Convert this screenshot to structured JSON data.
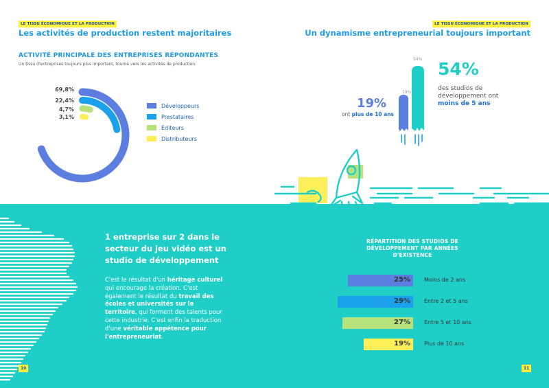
{
  "left": {
    "tag": "LE TISSU ÉCONOMIQUE ET LA PRODUCTION",
    "headline": "Les activités de production restent majoritaires",
    "section_title": "ACTIVITÉ PRINCIPALE DES ENTREPRISES RÉPONDANTES",
    "section_subtitle": "Un tissu d'entreprises toujours plus important, tourné vers les activités de production.",
    "heading": "1 entreprise sur 2 dans le secteur du jeu vidéo est un studio de développement",
    "body": {
      "p1": "C'est le résultat d'un ",
      "b1": "héritage culturel",
      "p2": " qui encourage la création. C'est également le résultat du ",
      "b2": "travail des écoles et universités sur le territoire",
      "p3": ", qui forment des talents pour cette industrie. C'est enfin la traduction d'une ",
      "b3": "véritable appétence pour l'entrepreneuriat",
      "p4": "."
    },
    "page_number": "10"
  },
  "right": {
    "tag": "LE TISSU ÉCONOMIQUE ET LA PRODUCTION",
    "headline": "Un dynamisme entrepreneurial toujours important",
    "stat_big": "54%",
    "stat_big_text_1": "des studios de développement ont ",
    "stat_big_text_bold": "moins de 5 ans",
    "stat_small": "19%",
    "stat_small_text_1": "ont ",
    "stat_small_text_bold": "plus de 10 ans",
    "bar_label_tall": "54%",
    "bar_label_short": "19%",
    "dist_title": "RÉPARTITION DES STUDIOS DE DÉVELOPPEMENT PAR ANNÉES D'EXISTENCE",
    "page_number": "11"
  },
  "colors": {
    "teal": "#1fcfc7",
    "blue_dark": "#5b7ee0",
    "blue": "#1ba0ec",
    "green": "#b5e27a",
    "yellow": "#fff05a"
  },
  "chart_data": [
    {
      "type": "pie",
      "title": "ACTIVITÉ PRINCIPALE DES ENTREPRISES RÉPONDANTES",
      "categories": [
        "Développeurs",
        "Prestataires",
        "Éditeurs",
        "Distributeurs"
      ],
      "values": [
        69.8,
        22.4,
        4.7,
        3.1
      ],
      "value_labels": [
        "69,8%",
        "22,4%",
        "4,7%",
        "3,1%"
      ],
      "colors": [
        "#5b7ee0",
        "#1ba0ec",
        "#b5e27a",
        "#fff05a"
      ],
      "legend": "right"
    },
    {
      "type": "bar",
      "title": "RÉPARTITION DES STUDIOS DE DÉVELOPPEMENT PAR ANNÉES D'EXISTENCE",
      "categories": [
        "Moins de 2 ans",
        "Entre 2 et 5 ans",
        "Entre 5 et 10 ans",
        "Plus de 10 ans"
      ],
      "values": [
        25,
        29,
        27,
        19
      ],
      "value_labels": [
        "25%",
        "29%",
        "27%",
        "19%"
      ],
      "colors": [
        "#5b7ee0",
        "#1ba0ec",
        "#b5e27a",
        "#fff05a"
      ]
    }
  ]
}
